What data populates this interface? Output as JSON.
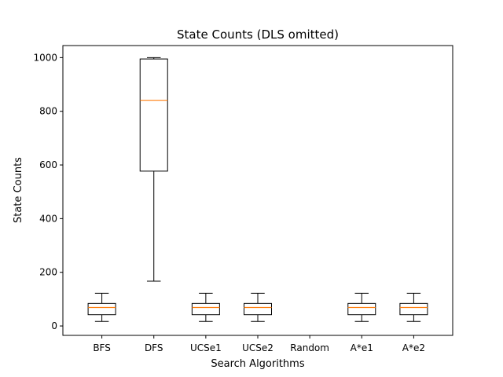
{
  "chart_data": {
    "type": "box",
    "title": "State Counts (DLS omitted)",
    "xlabel": "Search Algorithms",
    "ylabel": "State Counts",
    "ylim": [
      -35,
      1045
    ],
    "yticks": [
      0,
      200,
      400,
      600,
      800,
      1000
    ],
    "categories": [
      "BFS",
      "DFS",
      "UCSe1",
      "UCSe2",
      "Random",
      "A*e1",
      "A*e2"
    ],
    "boxes": [
      {
        "category": "BFS",
        "whisker_low": 17,
        "q1": 42,
        "median": 69,
        "q3": 84,
        "whisker_high": 122
      },
      {
        "category": "DFS",
        "whisker_low": 167,
        "q1": 577,
        "median": 841,
        "q3": 995,
        "whisker_high": 1000
      },
      {
        "category": "UCSe1",
        "whisker_low": 17,
        "q1": 42,
        "median": 69,
        "q3": 84,
        "whisker_high": 122
      },
      {
        "category": "UCSe2",
        "whisker_low": 17,
        "q1": 42,
        "median": 69,
        "q3": 84,
        "whisker_high": 122
      },
      {
        "category": "Random"
      },
      {
        "category": "A*e1",
        "whisker_low": 17,
        "q1": 42,
        "median": 69,
        "q3": 84,
        "whisker_high": 122
      },
      {
        "category": "A*e2",
        "whisker_low": 17,
        "q1": 42,
        "median": 69,
        "q3": 84,
        "whisker_high": 122
      }
    ],
    "colors": {
      "box": "#000000",
      "median": "#ff7f0e",
      "background": "#ffffff"
    },
    "grid": false,
    "legend": "none"
  }
}
